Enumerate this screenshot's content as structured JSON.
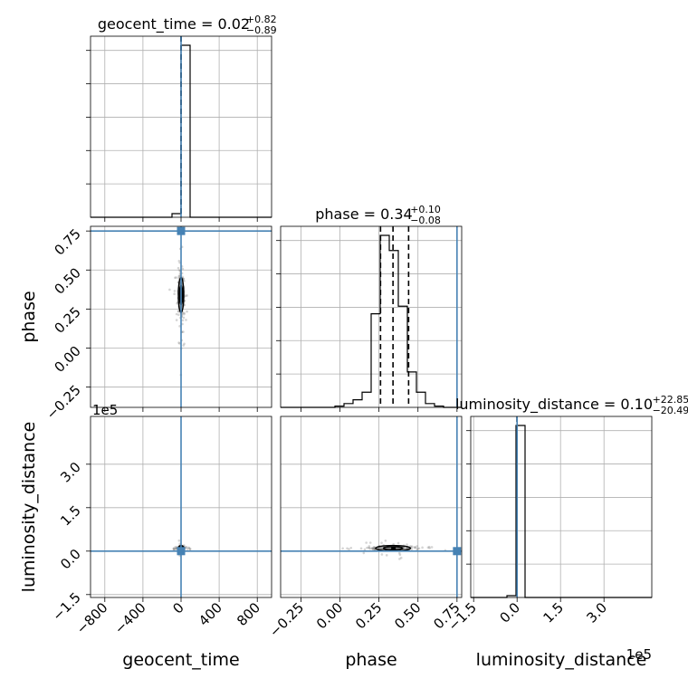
{
  "chart_data": {
    "type": "corner",
    "parameters": [
      "geocent_time",
      "phase",
      "luminosity_distance"
    ],
    "axis_labels": {
      "geocent_time": "geocent_time",
      "phase": "phase",
      "luminosity_distance": "luminosity_distance"
    },
    "ranges": {
      "geocent_time": [
        -950,
        950
      ],
      "phase": [
        -0.38,
        0.78
      ],
      "luminosity_distance": [
        -160000,
        465000
      ]
    },
    "ticks": {
      "geocent_time": {
        "values": [
          -800,
          -400,
          0,
          400,
          800
        ],
        "labels": [
          "−800",
          "−400",
          "0",
          "400",
          "800"
        ]
      },
      "phase": {
        "values": [
          -0.25,
          0.0,
          0.25,
          0.5,
          0.75
        ],
        "labels": [
          "−0.25",
          "0.00",
          "0.25",
          "0.50",
          "0.75"
        ]
      },
      "luminosity_distance": {
        "values": [
          -150000,
          0,
          150000,
          300000
        ],
        "labels": [
          "−1.5",
          "0.0",
          "1.5",
          "3.0"
        ]
      }
    },
    "offset_text": "1e5",
    "truths": {
      "geocent_time": 0,
      "phase": 0.75,
      "luminosity_distance": 0
    },
    "titles": [
      {
        "param": "geocent_time",
        "label": "geocent_time = 0.02",
        "plus": "+0.82",
        "minus": "−0.89"
      },
      {
        "param": "phase",
        "label": "phase = 0.34",
        "plus": "+0.10",
        "minus": "−0.08"
      },
      {
        "param": "luminosity_distance",
        "label": "luminosity_distance = 0.10",
        "plus": "+22.85",
        "minus": "−20.49"
      }
    ],
    "quantiles": {
      "geocent_time": [
        -0.87,
        0.02,
        0.84
      ],
      "phase": [
        0.26,
        0.34,
        0.44
      ],
      "luminosity_distance": [
        -20.39,
        0.1,
        22.95
      ]
    },
    "histograms": {
      "geocent_time": {
        "edges": [
          -950,
          -855,
          -760,
          -665,
          -570,
          -475,
          -380,
          -285,
          -190,
          -95,
          0,
          95,
          190,
          285,
          380,
          475,
          570,
          665,
          760,
          855,
          950
        ],
        "counts": [
          0,
          0,
          0,
          0,
          0,
          0,
          0,
          0,
          0,
          2,
          95,
          0,
          0,
          0,
          0,
          0,
          0,
          0,
          0,
          0
        ]
      },
      "phase": {
        "edges": [
          -0.38,
          -0.322,
          -0.264,
          -0.206,
          -0.148,
          -0.09,
          -0.032,
          0.026,
          0.084,
          0.142,
          0.2,
          0.258,
          0.316,
          0.374,
          0.432,
          0.49,
          0.548,
          0.606,
          0.664,
          0.722,
          0.78
        ],
        "counts": [
          0,
          0,
          0,
          0,
          0,
          0,
          0.5,
          1.5,
          3,
          6,
          37,
          68,
          62,
          40,
          14,
          6,
          1.5,
          0.5,
          0,
          0
        ]
      },
      "luminosity_distance": {
        "edges": [
          -160000,
          -128750,
          -97500,
          -66250,
          -35000,
          -3750,
          27500,
          58750,
          90000,
          121250,
          152500,
          183750,
          215000,
          246250,
          277500,
          308750,
          340000,
          371250,
          402500,
          433750,
          465000
        ],
        "counts": [
          0,
          0,
          0,
          0,
          1,
          96,
          0,
          0,
          0,
          0,
          0,
          0,
          0,
          0,
          0,
          0,
          0,
          0,
          0,
          0
        ]
      }
    },
    "grid": true
  }
}
